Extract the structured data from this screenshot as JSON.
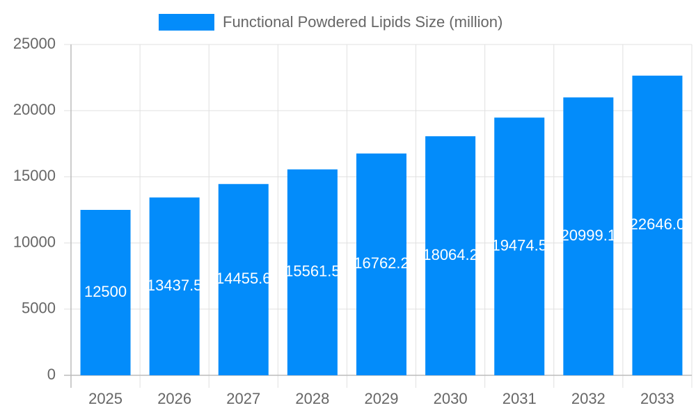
{
  "chart_data": {
    "type": "bar",
    "series": [
      {
        "name": "Functional Powdered Lipids Size (million)",
        "color": "#038cfa",
        "values": [
          12500,
          13437.5,
          14455.6,
          15561.5,
          16762.2,
          18064.2,
          19474.5,
          20999.1,
          22646.0
        ],
        "value_labels": [
          "12500",
          "13437.5",
          "14455.6",
          "15561.5",
          "16762.2",
          "18064.2",
          "19474.5",
          "20999.1",
          "22646.0"
        ]
      }
    ],
    "categories": [
      "2025",
      "2026",
      "2027",
      "2028",
      "2029",
      "2030",
      "2031",
      "2032",
      "2033"
    ],
    "ylim": [
      0,
      25000
    ],
    "yticks": [
      0,
      5000,
      10000,
      15000,
      20000,
      25000
    ],
    "grid": true,
    "legend": "top"
  }
}
